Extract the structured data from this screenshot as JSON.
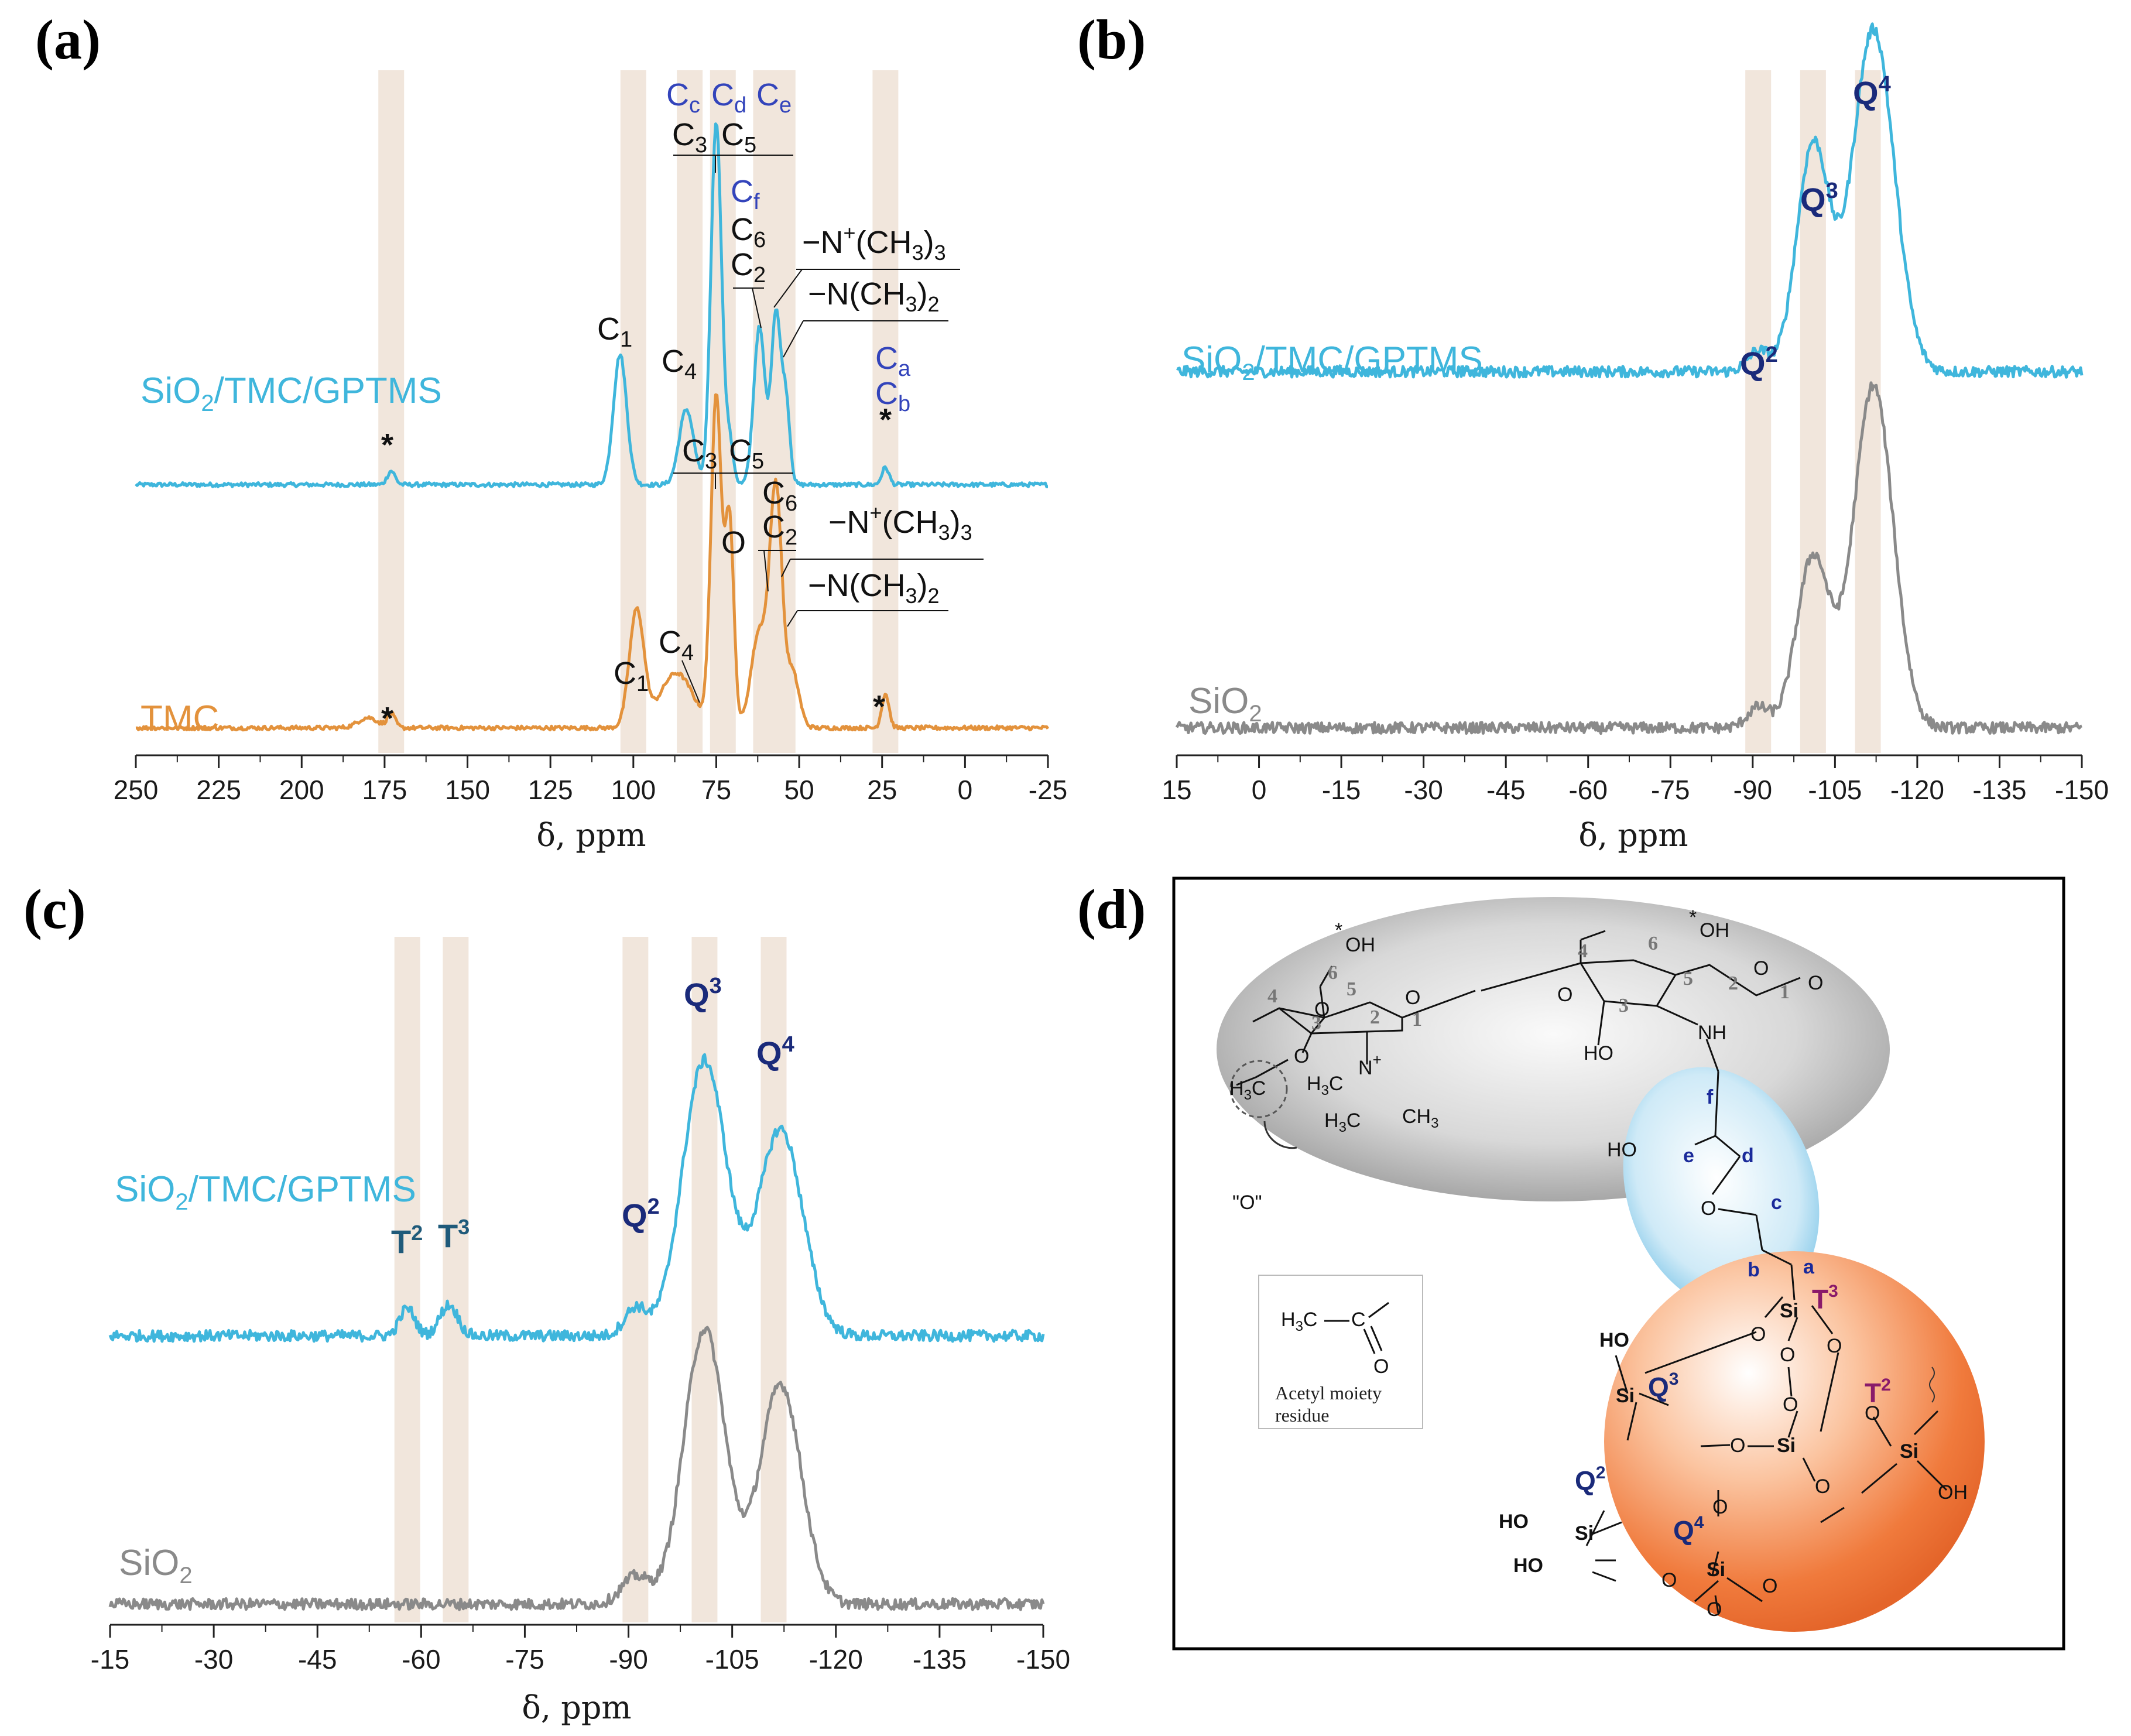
{
  "colors": {
    "composite": "#3fb6dc",
    "tmc": "#e3923c",
    "sio2": "#8a8a8a",
    "band": "#f1e6dc",
    "qlabel": "#1a2a7a",
    "tlabel": "#1f5a7a",
    "carbon_blue": "#3344bb",
    "sphere_orange": "#f07a3c",
    "ellipse_gray": "#bdbdbd",
    "ellipse_blue": "#bfe3f5"
  },
  "chart_data": [
    {
      "panel": "(a)",
      "type": "line",
      "xlabel": "δ, ppm",
      "xlim": [
        250,
        -25
      ],
      "ylim": [
        0,
        1
      ],
      "xticks": [
        250,
        225,
        200,
        175,
        150,
        125,
        100,
        75,
        50,
        25,
        0,
        -25
      ],
      "xtick_labels": [
        "250",
        "225",
        "200",
        "175",
        "150",
        "125",
        "100",
        "75",
        "50",
        "25",
        "0",
        "-25"
      ],
      "bands": [
        173,
        100,
        83,
        73,
        60,
        55,
        24
      ],
      "series": [
        {
          "name": "SiO2/TMC/GPTMS",
          "label": "SiO",
          "label_sub": "2",
          "label_rest": "/TMC/GPTMS",
          "baseline": 0.395,
          "peaks": [
            [
              173,
              0.02,
              1.2
            ],
            [
              104,
              0.19,
              2.0
            ],
            [
              84,
              0.11,
              2.2
            ],
            [
              75,
              0.53,
              1.6
            ],
            [
              71,
              0.06,
              1.2
            ],
            [
              62,
              0.23,
              1.7
            ],
            [
              57,
              0.25,
              1.4
            ],
            [
              54,
              0.12,
              1.2
            ],
            [
              24,
              0.025,
              1.1
            ]
          ]
        },
        {
          "name": "TMC",
          "label": "TMC",
          "baseline": 0.04,
          "peaks": [
            [
              180,
              0.015,
              3.0
            ],
            [
              173,
              0.02,
              1.2
            ],
            [
              99,
              0.17,
              2.2
            ],
            [
              87,
              0.08,
              5.0
            ],
            [
              75,
              0.48,
              1.6
            ],
            [
              71,
              0.3,
              1.3
            ],
            [
              62,
              0.14,
              2.5
            ],
            [
              57,
              0.34,
              1.8
            ],
            [
              52,
              0.08,
              2.0
            ],
            [
              24,
              0.05,
              1.1
            ]
          ]
        }
      ],
      "annotations": {
        "composite": {
          "c1": "C",
          "c1_sub": "1",
          "c4": "C",
          "c4_sub": "4",
          "c3": "C",
          "c3_sub": "3",
          "c5": "C",
          "c5_sub": "5",
          "c6": "C",
          "c6_sub": "6",
          "c2": "C",
          "c2_sub": "2",
          "cc": "C",
          "cc_sub": "c",
          "cd": "C",
          "cd_sub": "d",
          "ce": "C",
          "ce_sub": "e",
          "cf": "C",
          "cf_sub": "f",
          "ca": "C",
          "ca_sub": "a",
          "cb": "C",
          "cb_sub": "b",
          "ntrim_a": "−N",
          "ntrim_sup": "+",
          "ntrim_b": "(CH",
          "ntrim_sub": "3",
          "ntrim_c": ")",
          "ntrim_sub2": "3",
          "ndim_a": "−N(CH",
          "ndim_sub": "3",
          "ndim_b": ")",
          "ndim_sub2": "2",
          "star": "*"
        },
        "tmc": {
          "c1": "C",
          "c1_sub": "1",
          "c4": "C",
          "c4_sub": "4",
          "c3": "C",
          "c3_sub": "3",
          "c5": "C",
          "c5_sub": "5",
          "c6": "C",
          "c6_sub": "6",
          "c2": "C",
          "c2_sub": "2",
          "o": "O",
          "ntrim_a": "−N",
          "ntrim_sup": "+",
          "ntrim_b": "(CH",
          "ntrim_sub": "3",
          "ntrim_c": ")",
          "ntrim_sub2": "3",
          "ndim_a": "−N(CH",
          "ndim_sub": "3",
          "ndim_b": ")",
          "ndim_sub2": "2",
          "star": "*"
        }
      }
    },
    {
      "panel": "(b)",
      "type": "line",
      "xlabel": "δ, ppm",
      "xlim": [
        15,
        -150
      ],
      "ylim": [
        0,
        1
      ],
      "xticks": [
        15,
        0,
        -15,
        -30,
        -45,
        -60,
        -75,
        -90,
        -105,
        -120,
        -135,
        -150
      ],
      "xtick_labels": [
        "15",
        "0",
        "-15",
        "-30",
        "-45",
        "-60",
        "-75",
        "-90",
        "-105",
        "-120",
        "-135",
        "-150"
      ],
      "bands": [
        -91,
        -101,
        -111
      ],
      "series": [
        {
          "name": "SiO2/TMC/GPTMS",
          "label": "SiO",
          "label_sub": "2",
          "label_rest": "/TMC/GPTMS",
          "baseline": 0.56,
          "peaks": [
            [
              -91,
              0.03,
              2.0
            ],
            [
              -101,
              0.33,
              3.0
            ],
            [
              -112,
              0.5,
              3.8
            ]
          ]
        },
        {
          "name": "SiO2",
          "label": "SiO",
          "label_sub": "2",
          "label_rest": "",
          "baseline": 0.04,
          "peaks": [
            [
              -91,
              0.03,
              2.0
            ],
            [
              -101,
              0.25,
              3.0
            ],
            [
              -112,
              0.5,
              3.6
            ]
          ]
        }
      ],
      "annotations": {
        "q2": "Q",
        "q2_sup": "2",
        "q3": "Q",
        "q3_sup": "3",
        "q4": "Q",
        "q4_sup": "4"
      }
    },
    {
      "panel": "(c)",
      "type": "line",
      "xlabel": "δ, ppm",
      "xlim": [
        -15,
        -150
      ],
      "ylim": [
        0,
        1
      ],
      "xticks": [
        -15,
        -30,
        -45,
        -60,
        -75,
        -90,
        -105,
        -120,
        -135,
        -150
      ],
      "xtick_labels": [
        "-15",
        "-30",
        "-45",
        "-60",
        "-75",
        "-90",
        "-105",
        "-120",
        "-135",
        "-150"
      ],
      "bands": [
        -58,
        -65,
        -91,
        -101,
        -111
      ],
      "series": [
        {
          "name": "SiO2/TMC/GPTMS",
          "label": "SiO",
          "label_sub": "2",
          "label_rest": "/TMC/GPTMS",
          "baseline": 0.42,
          "peaks": [
            [
              -58,
              0.04,
              1.1
            ],
            [
              -64,
              0.045,
              1.3
            ],
            [
              -91,
              0.04,
              1.6
            ],
            [
              -101,
              0.4,
              3.2
            ],
            [
              -112,
              0.3,
              3.2
            ]
          ]
        },
        {
          "name": "SiO2",
          "label": "SiO",
          "label_sub": "2",
          "label_rest": "",
          "baseline": 0.03,
          "peaks": [
            [
              -91,
              0.04,
              2.0
            ],
            [
              -101,
              0.4,
              3.0
            ],
            [
              -112,
              0.32,
              3.0
            ]
          ]
        }
      ],
      "annotations": {
        "t2": "T",
        "t2_sup": "2",
        "t3": "T",
        "t3_sup": "3",
        "q2": "Q",
        "q2_sup": "2",
        "q3": "Q",
        "q3_sup": "3",
        "q4": "Q",
        "q4_sup": "4"
      }
    }
  ],
  "panel_d": {
    "label": "(d)",
    "oh": "OH",
    "star": "*",
    "o": "O",
    "ho": "HO",
    "nh": "NH",
    "n": "N",
    "nplus": "+",
    "h3c": "H",
    "h3c_sub": "3",
    "h3c_c": "C",
    "ch3": "CH",
    "ch3_sub": "3",
    "quoted_o": "\"O\"",
    "ring_nums": [
      "1",
      "2",
      "3",
      "4",
      "5",
      "6"
    ],
    "chain": [
      "a",
      "b",
      "c",
      "d",
      "e",
      "f"
    ],
    "si": "Si",
    "q2": "Q",
    "q2_sup": "2",
    "q3": "Q",
    "q3_sup": "3",
    "q4": "Q",
    "q4_sup": "4",
    "t2": "T",
    "t2_sup": "2",
    "t3": "T",
    "t3_sup": "3",
    "acetyl_title": "Acetyl moiety",
    "acetyl_title2": "residue",
    "acetyl_c": "C",
    "acetyl_o": "O"
  }
}
